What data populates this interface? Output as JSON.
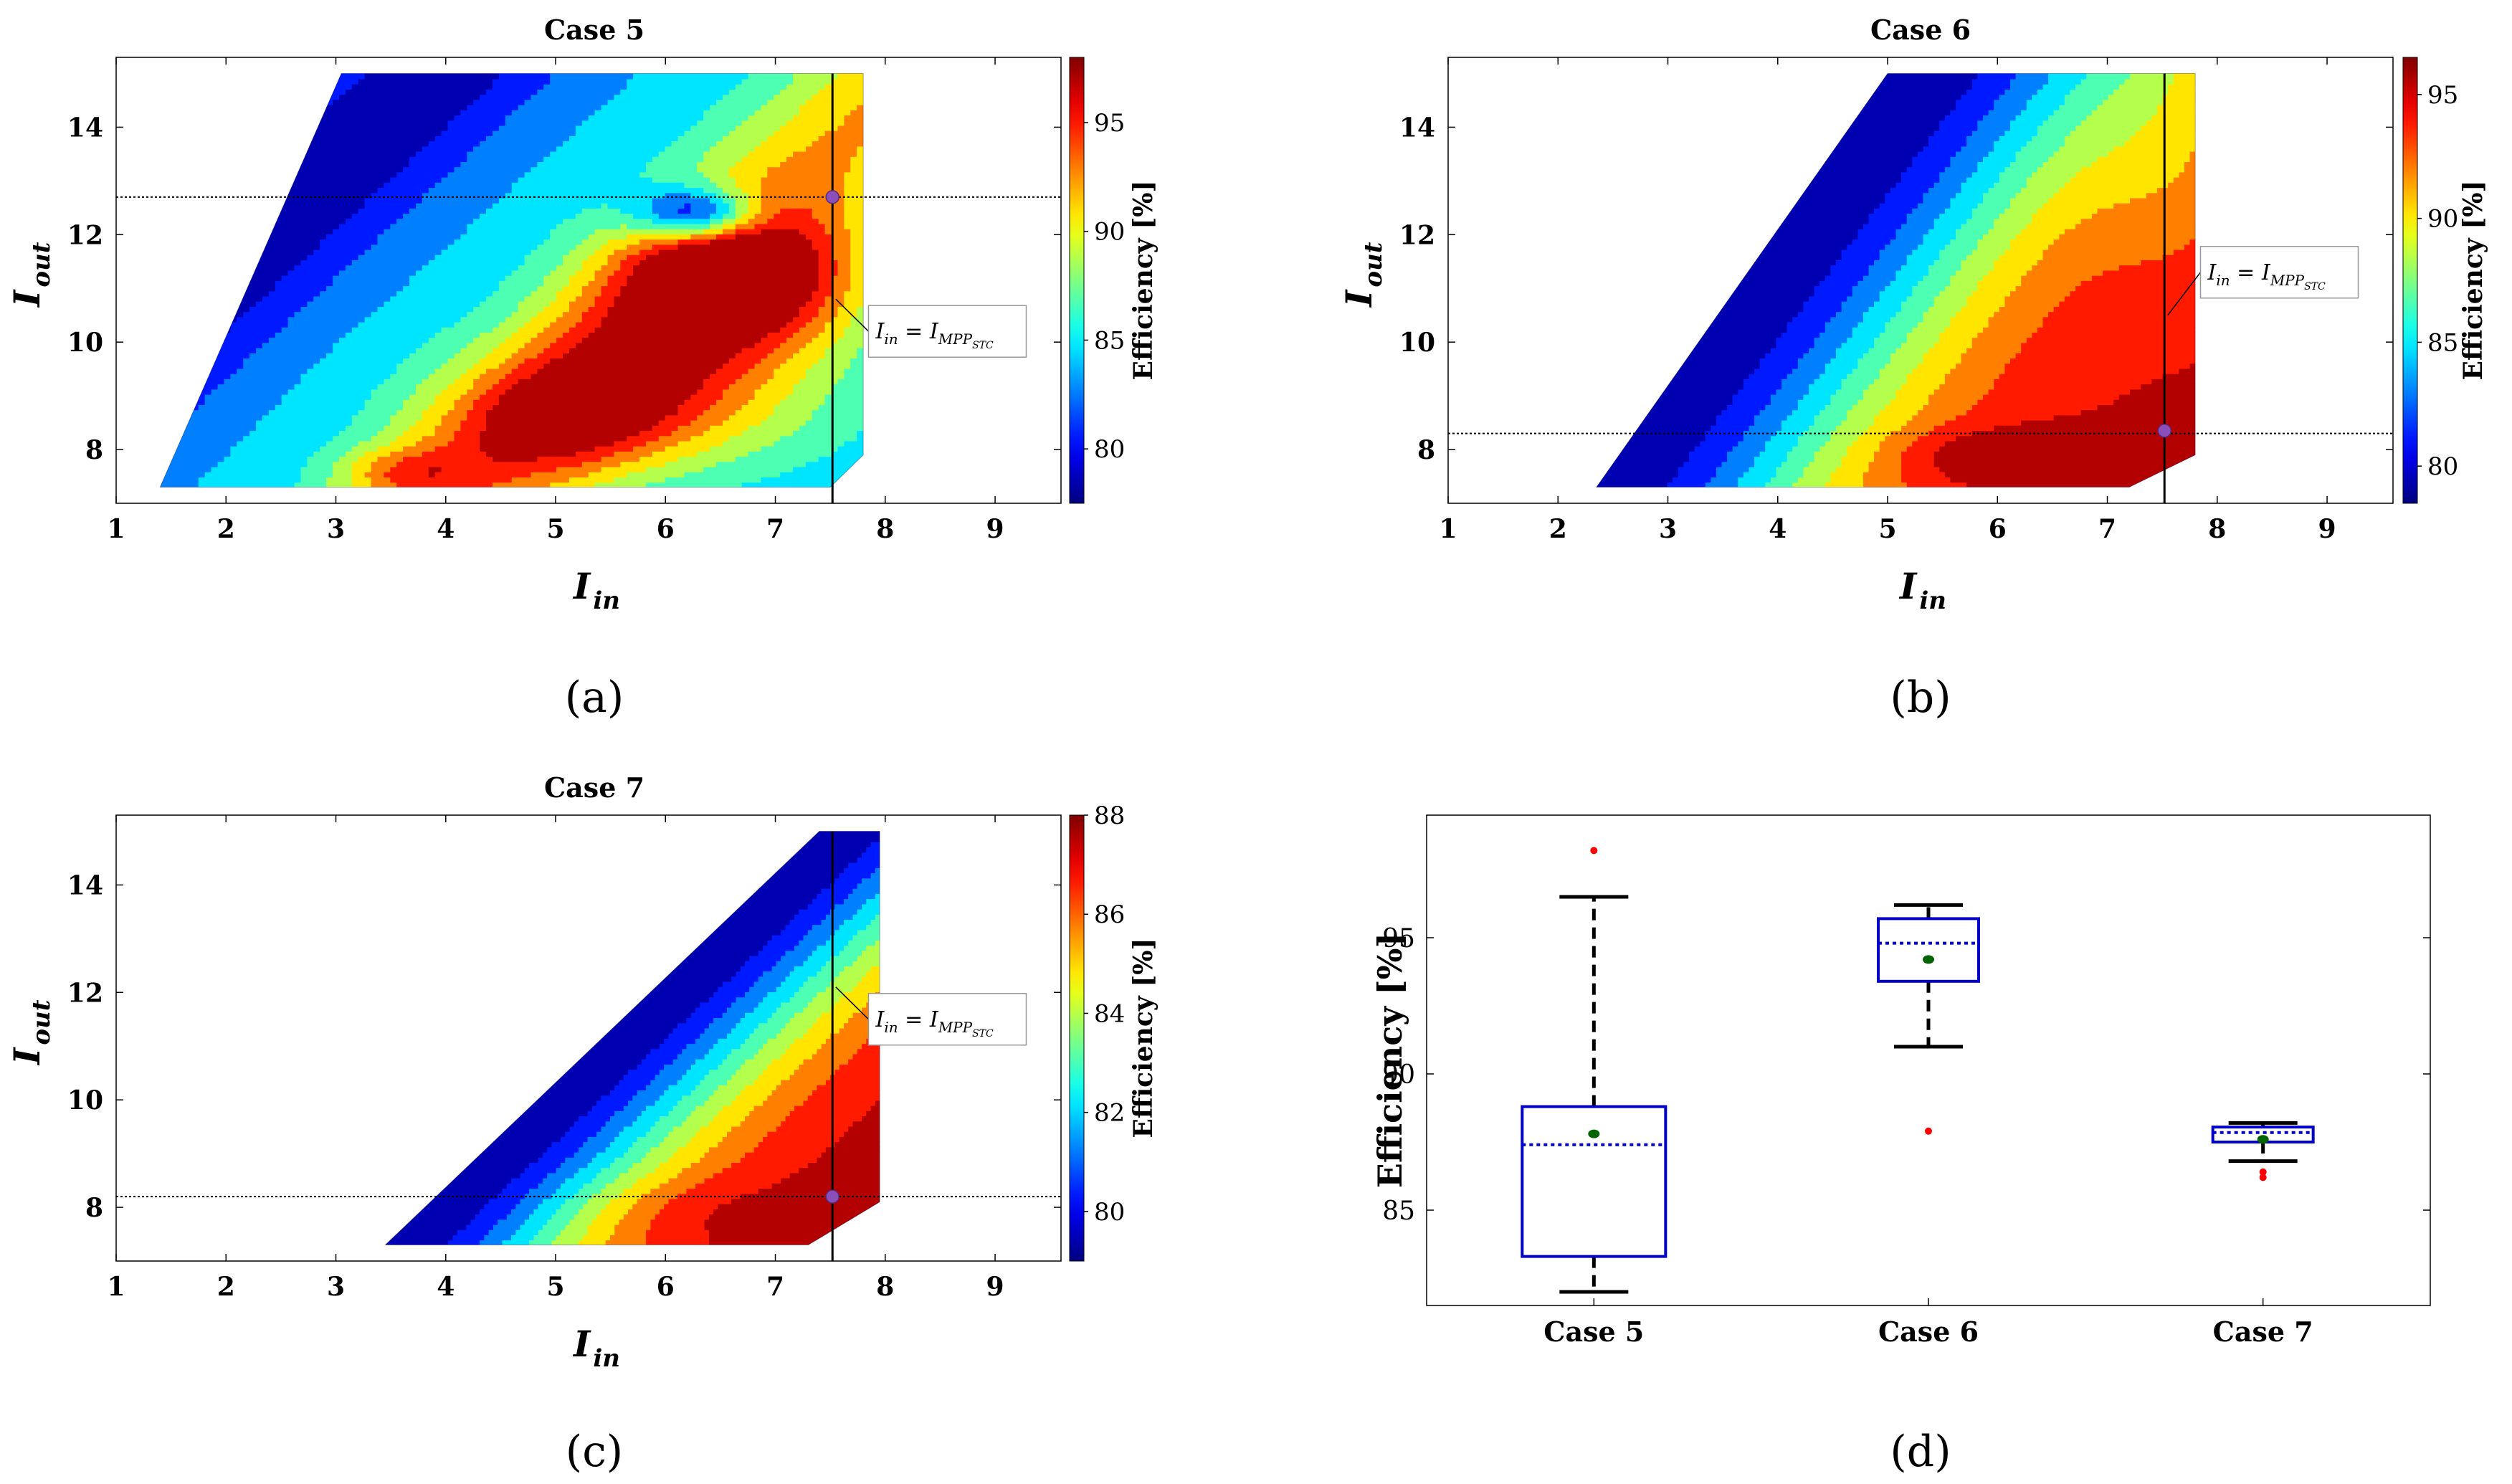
{
  "figure": {
    "panel_labels": [
      "(a)",
      "(b)",
      "(c)",
      "(d)"
    ]
  },
  "chart_data": [
    {
      "type": "contour",
      "panel": "a",
      "title": "Case 5",
      "xlabel": "I",
      "xlabel_sub": "in",
      "ylabel": "I",
      "ylabel_sub": "out",
      "xlim": [
        1,
        9.6
      ],
      "ylim": [
        7,
        15.3
      ],
      "xticks": [
        1,
        2,
        3,
        4,
        5,
        6,
        7,
        8,
        9
      ],
      "yticks": [
        8,
        10,
        12,
        14
      ],
      "colorbar": {
        "label": "Efficiency [%]",
        "range": [
          77.5,
          98
        ],
        "ticks": [
          80,
          85,
          90,
          95
        ]
      },
      "region": [
        [
          1.4,
          7.3
        ],
        [
          3.05,
          15
        ],
        [
          7.8,
          15
        ],
        [
          7.8,
          7.9
        ],
        [
          7.5,
          7.3
        ]
      ],
      "field": {
        "type": "case5",
        "min": 77.5,
        "max": 98
      },
      "mpp_x": 7.52,
      "operating_y": 12.7,
      "marker": [
        7.52,
        12.7
      ],
      "annotation": {
        "text": "I",
        "sub_in": "in",
        "eq": " = I",
        "sub_mpp": "MPP",
        "sub_stc": "STC",
        "point": [
          7.55,
          10.8
        ],
        "box_at": [
          7.6,
          10.2
        ]
      }
    },
    {
      "type": "contour",
      "panel": "b",
      "title": "Case 6",
      "xlabel": "I",
      "xlabel_sub": "in",
      "ylabel": "I",
      "ylabel_sub": "out",
      "xlim": [
        1,
        9.6
      ],
      "ylim": [
        7,
        15.3
      ],
      "xticks": [
        1,
        2,
        3,
        4,
        5,
        6,
        7,
        8,
        9
      ],
      "yticks": [
        8,
        10,
        12,
        14
      ],
      "colorbar": {
        "label": "Efficiency [%]",
        "range": [
          78.5,
          96.5
        ],
        "ticks": [
          80,
          85,
          90,
          95
        ]
      },
      "region": [
        [
          2.35,
          7.3
        ],
        [
          5.0,
          15
        ],
        [
          7.8,
          15
        ],
        [
          7.8,
          7.9
        ],
        [
          7.2,
          7.3
        ]
      ],
      "field": {
        "type": "case6",
        "min": 78.5,
        "max": 96.5
      },
      "mpp_x": 7.52,
      "operating_y": 8.3,
      "marker": [
        7.52,
        8.35
      ],
      "annotation": {
        "text": "I",
        "sub_in": "in",
        "eq": " = I",
        "sub_mpp": "MPP",
        "sub_stc": "STC",
        "point": [
          7.55,
          10.5
        ],
        "box_at": [
          7.6,
          11.3
        ]
      }
    },
    {
      "type": "contour",
      "panel": "c",
      "title": "Case 7",
      "xlabel": "I",
      "xlabel_sub": "in",
      "ylabel": "I",
      "ylabel_sub": "out",
      "xlim": [
        1,
        9.6
      ],
      "ylim": [
        7,
        15.3
      ],
      "xticks": [
        1,
        2,
        3,
        4,
        5,
        6,
        7,
        8,
        9
      ],
      "yticks": [
        8,
        10,
        12,
        14
      ],
      "colorbar": {
        "label": "Efficiency [%]",
        "range": [
          79,
          88
        ],
        "ticks": [
          80,
          82,
          84,
          86,
          88
        ]
      },
      "region": [
        [
          3.45,
          7.3
        ],
        [
          7.4,
          15
        ],
        [
          7.95,
          15
        ],
        [
          7.95,
          8.1
        ],
        [
          7.3,
          7.3
        ]
      ],
      "field": {
        "type": "case7",
        "min": 79,
        "max": 88
      },
      "mpp_x": 7.52,
      "operating_y": 8.2,
      "marker": [
        7.52,
        8.2
      ],
      "annotation": {
        "text": "I",
        "sub_in": "in",
        "eq": " = I",
        "sub_mpp": "MPP",
        "sub_stc": "STC",
        "point": [
          7.55,
          12.1
        ],
        "box_at": [
          7.6,
          11.5
        ]
      }
    },
    {
      "type": "box",
      "panel": "d",
      "ylabel": "Efficiency [%]",
      "categories": [
        "Case 5",
        "Case 6",
        "Case 7"
      ],
      "ylim": [
        81.5,
        99.5
      ],
      "yticks": [
        85,
        90,
        95
      ],
      "boxes": [
        {
          "name": "Case 5",
          "whisker_low": 82.0,
          "q1": 83.3,
          "median": 87.4,
          "q3": 88.8,
          "whisker_high": 96.5,
          "mean": 87.8,
          "outliers": [
            98.2
          ]
        },
        {
          "name": "Case 6",
          "whisker_low": 91.0,
          "q1": 93.4,
          "median": 94.8,
          "q3": 95.7,
          "whisker_high": 96.2,
          "mean": 94.2,
          "outliers": [
            87.9
          ]
        },
        {
          "name": "Case 7",
          "whisker_low": 86.8,
          "q1": 87.5,
          "median": 87.85,
          "q3": 88.05,
          "whisker_high": 88.2,
          "mean": 87.6,
          "outliers": [
            86.2,
            86.4
          ]
        }
      ],
      "colors": {
        "box": "#0000c8",
        "median": "#0000c8",
        "mean": "#006400",
        "outlier": "#ff0000",
        "whisker": "#000000"
      }
    }
  ]
}
